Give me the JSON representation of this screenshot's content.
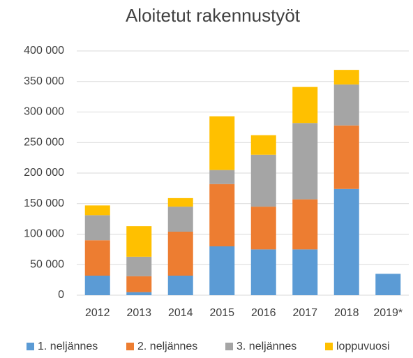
{
  "chart_data": {
    "type": "stacked_bar",
    "title": "Aloitetut rakennustyöt",
    "categories": [
      "2012",
      "2013",
      "2014",
      "2015",
      "2016",
      "2017",
      "2018",
      "2019*"
    ],
    "series": [
      {
        "name": "1. neljännes",
        "color": "#5b9bd5",
        "values": [
          32000,
          5000,
          32000,
          80000,
          75000,
          75000,
          174000,
          35000
        ]
      },
      {
        "name": "2. neljännes",
        "color": "#ed7d31",
        "values": [
          58000,
          26000,
          72000,
          102000,
          70000,
          82000,
          104000,
          null
        ]
      },
      {
        "name": "3. neljännes",
        "color": "#a5a5a5",
        "values": [
          41000,
          32000,
          41000,
          23000,
          85000,
          125000,
          67000,
          null
        ]
      },
      {
        "name": "loppuvuosi",
        "color": "#ffc000",
        "values": [
          16000,
          50000,
          14000,
          88000,
          32000,
          59000,
          24000,
          null
        ]
      }
    ],
    "ylim": [
      0,
      400000
    ],
    "yticks": [
      0,
      {
        "value": 50000,
        "label": "50 000"
      },
      {
        "value": 100000,
        "label": "100 000"
      },
      {
        "value": 150000,
        "label": "150 000"
      },
      {
        "value": 200000,
        "label": "200 000"
      },
      {
        "value": 250000,
        "label": "250 000"
      },
      {
        "value": 300000,
        "label": "300 000"
      },
      {
        "value": 350000,
        "label": "350 000"
      },
      {
        "value": 400000,
        "label": "400 000"
      }
    ],
    "grid": true,
    "legend": "bottom"
  }
}
